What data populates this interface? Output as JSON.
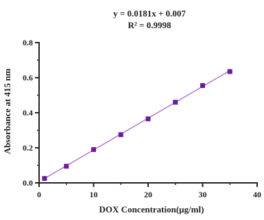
{
  "chart_data": {
    "type": "scatter",
    "annotations": [
      "y = 0.0181x + 0.007",
      "R² = 0.9998"
    ],
    "xlabel": "DOX Concentration(μg/ml)",
    "ylabel": "Absorbance at 415 nm",
    "xlim": [
      0,
      40
    ],
    "ylim": [
      0,
      0.8
    ],
    "xticks": [
      "0",
      "10",
      "20",
      "30",
      "40"
    ],
    "yticks": [
      "0.0",
      "0.2",
      "0.4",
      "0.6",
      "0.8"
    ],
    "grid": false,
    "series": [
      {
        "x": [
          1,
          5,
          10,
          15,
          20,
          25,
          30,
          35
        ],
        "y": [
          0.025,
          0.095,
          0.19,
          0.275,
          0.365,
          0.46,
          0.555,
          0.635
        ]
      }
    ],
    "fit_line": {
      "slope": 0.0181,
      "intercept": 0.007,
      "x_range": [
        1,
        35
      ]
    },
    "colors": {
      "marker": "#6a1b9a",
      "line": "#b07ad0",
      "axis": "#222222"
    }
  }
}
